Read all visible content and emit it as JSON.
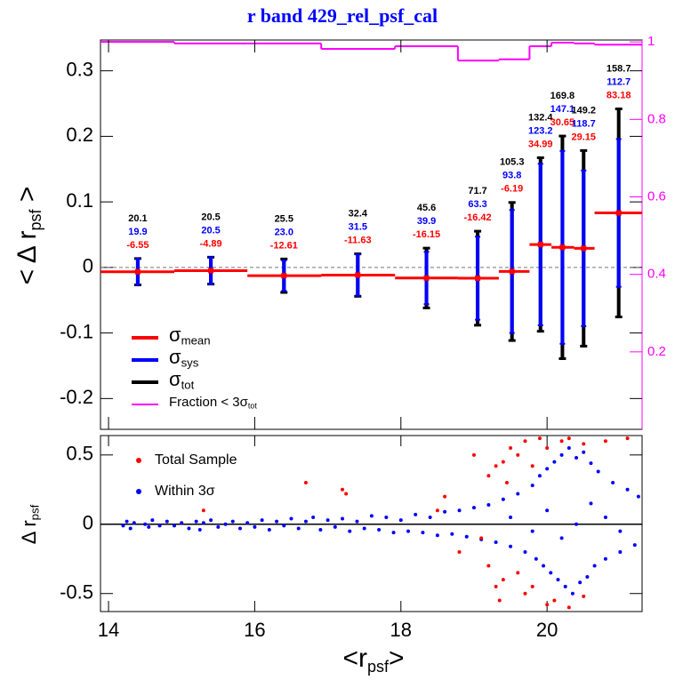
{
  "chart_data": [
    {
      "type": "errorbar",
      "title": "r band 429_rel_psf_cal",
      "y_label": {
        "text": "< Δ r",
        "sub": "psf",
        "tail": " >"
      },
      "xlim": [
        13.89,
        21.3
      ],
      "ylim": [
        -0.247,
        0.347
      ],
      "yticks": [
        -0.2,
        -0.1,
        0,
        0.1,
        0.2,
        0.3
      ],
      "y2lim": [
        0.0,
        1.005
      ],
      "y2ticks": [
        0.2,
        0.4,
        0.6,
        0.8,
        1
      ],
      "y2_color": "#ff00ff",
      "bins": [
        13.89,
        14.9,
        15.9,
        16.91,
        17.92,
        18.78,
        19.34,
        19.76,
        20.06,
        20.37,
        20.65,
        21.3
      ],
      "x": [
        14.4,
        15.4,
        16.4,
        17.41,
        18.35,
        19.05,
        19.52,
        19.91,
        20.21,
        20.5,
        20.98
      ],
      "series": [
        {
          "name": {
            "text": "σ",
            "sub": "mean"
          },
          "color": "#ff0000",
          "values": [
            -0.00655,
            -0.00489,
            -0.01261,
            -0.01163,
            -0.01615,
            -0.01642,
            -0.00619,
            0.03499,
            0.03065,
            0.02915,
            0.08318
          ],
          "value_labels": [
            "-6.55",
            "-4.89",
            "-12.61",
            "-11.63",
            "-16.15",
            "-16.42",
            "-6.19",
            "34.99",
            "30.65",
            "29.15",
            "83.18"
          ]
        },
        {
          "name": {
            "text": "σ",
            "sub": "sys"
          },
          "color": "#0000ff",
          "values": [
            0.0199,
            0.0205,
            0.023,
            0.0315,
            0.0399,
            0.0633,
            0.0938,
            0.1232,
            0.1471,
            0.1187,
            0.1127
          ],
          "value_labels": [
            "19.9",
            "20.5",
            "23.0",
            "31.5",
            "39.9",
            "63.3",
            "93.8",
            "123.2",
            "147.1",
            "118.7",
            "112.7"
          ]
        },
        {
          "name": {
            "text": "σ",
            "sub": "tot"
          },
          "color": "#000000",
          "values": [
            0.0201,
            0.0205,
            0.0255,
            0.0324,
            0.0456,
            0.0717,
            0.1053,
            0.1324,
            0.1698,
            0.1492,
            0.1587
          ],
          "value_labels": [
            "20.1",
            "20.5",
            "25.5",
            "32.4",
            "45.6",
            "71.7",
            "105.3",
            "132.4",
            "169.8",
            "149.2",
            "158.7"
          ]
        },
        {
          "name": {
            "text": "Fraction < 3σ",
            "sub": "tot"
          },
          "color": "#ff00ff",
          "axis": "y2",
          "values": [
            1.0,
            0.996,
            0.996,
            0.982,
            0.989,
            0.952,
            0.955,
            0.989,
            0.998,
            0.996,
            0.993
          ]
        }
      ]
    },
    {
      "type": "scatter",
      "x_label": {
        "text": "<r",
        "sub": "psf",
        "tail": ">"
      },
      "y_label": {
        "text": "Δ r",
        "sub": "psf"
      },
      "xlim": [
        13.89,
        21.3
      ],
      "ylim": [
        -0.63,
        0.64
      ],
      "xticks": [
        14,
        16,
        18,
        20
      ],
      "yticks": [
        -0.5,
        0,
        0.5
      ],
      "series": [
        {
          "name": "Total Sample",
          "color": "#ff0000",
          "x": [
            16.7,
            17.2,
            17.25,
            15.3,
            18.5,
            19.0,
            19.2,
            19.3,
            19.4,
            19.45,
            19.5,
            19.6,
            19.7,
            19.8,
            19.9,
            20.0,
            20.2,
            20.3,
            20.5,
            20.8,
            21.1,
            19.2,
            19.3,
            19.35,
            19.4,
            19.6,
            19.7,
            19.8,
            20.0,
            20.1,
            20.3,
            20.5,
            18.8,
            18.6,
            19.1
          ],
          "y": [
            0.3,
            0.25,
            0.22,
            0.1,
            0.1,
            0.5,
            0.35,
            0.42,
            0.45,
            0.3,
            0.55,
            0.5,
            0.6,
            0.42,
            0.62,
            0.55,
            0.6,
            0.62,
            0.58,
            0.6,
            0.62,
            -0.3,
            -0.45,
            -0.55,
            -0.4,
            -0.35,
            -0.5,
            -0.45,
            -0.58,
            -0.55,
            -0.6,
            -0.52,
            -0.2,
            0.2,
            -0.1
          ]
        },
        {
          "name": "Within 3σ",
          "color": "#0000ff",
          "x": [
            14.2,
            14.25,
            14.3,
            14.35,
            14.5,
            14.55,
            14.6,
            14.7,
            14.8,
            14.9,
            15.0,
            15.1,
            15.2,
            15.25,
            15.3,
            15.4,
            15.5,
            15.6,
            15.7,
            15.8,
            15.9,
            16.0,
            16.1,
            16.2,
            16.3,
            16.4,
            16.5,
            16.6,
            16.7,
            16.8,
            16.9,
            17.0,
            17.1,
            17.2,
            17.3,
            17.4,
            17.5,
            17.6,
            17.7,
            17.8,
            17.9,
            18.0,
            18.1,
            18.2,
            18.3,
            18.4,
            18.5,
            18.6,
            18.7,
            18.8,
            18.9,
            19.0,
            19.1,
            19.2,
            19.3,
            19.4,
            19.5,
            19.6,
            19.7,
            19.8,
            19.85,
            19.9,
            19.95,
            20.0,
            20.05,
            20.1,
            20.15,
            20.2,
            20.25,
            20.3,
            20.35,
            20.4,
            20.45,
            20.5,
            20.55,
            20.6,
            20.65,
            20.7,
            20.8,
            20.9,
            21.0,
            21.1,
            21.2,
            21.25,
            19.5,
            19.8,
            20.0,
            20.2,
            20.4,
            20.6,
            20.8,
            21.0
          ],
          "y": [
            -0.01,
            0.02,
            -0.03,
            0.01,
            0.0,
            -0.02,
            0.03,
            -0.01,
            0.02,
            -0.01,
            0.01,
            -0.03,
            0.02,
            -0.04,
            0.01,
            0.03,
            -0.02,
            0.0,
            0.02,
            -0.03,
            0.01,
            -0.02,
            0.03,
            -0.04,
            0.02,
            -0.01,
            0.04,
            -0.03,
            0.02,
            0.05,
            -0.04,
            0.03,
            -0.02,
            0.04,
            -0.05,
            0.02,
            -0.03,
            0.06,
            -0.04,
            0.05,
            -0.06,
            0.03,
            -0.05,
            0.07,
            -0.06,
            0.05,
            -0.08,
            0.09,
            -0.07,
            0.1,
            -0.09,
            0.12,
            -0.11,
            0.14,
            -0.13,
            0.18,
            -0.16,
            0.22,
            -0.2,
            0.28,
            -0.25,
            0.35,
            -0.3,
            0.4,
            -0.35,
            0.45,
            -0.4,
            0.5,
            -0.45,
            0.55,
            -0.5,
            0.48,
            -0.42,
            0.52,
            -0.38,
            0.44,
            -0.3,
            0.38,
            -0.25,
            0.3,
            -0.2,
            0.25,
            -0.15,
            0.2,
            0.05,
            -0.05,
            0.1,
            -0.1,
            0.0,
            0.15,
            0.05,
            -0.05
          ]
        }
      ]
    }
  ]
}
